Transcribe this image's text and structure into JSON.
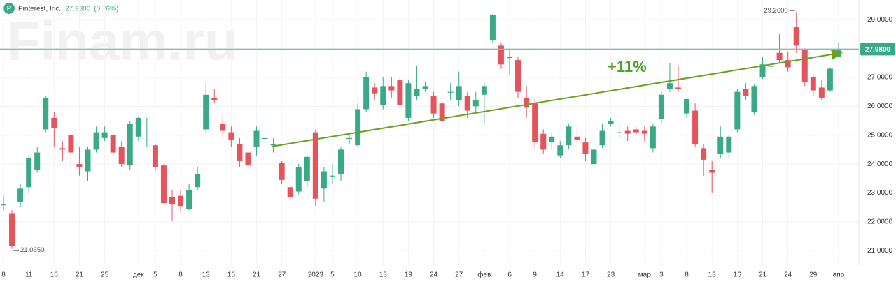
{
  "chart_data": {
    "type": "candlestick",
    "ticker_icon": "P",
    "title": "Pinterest, Inc.",
    "last_price": {
      "value": 27.98,
      "label": "27.9800"
    },
    "change": {
      "value": 0.76,
      "label": "(0.76%)"
    },
    "watermark": "Finam.ru",
    "annotation": {
      "value": 11,
      "label": "+11%"
    },
    "max_label": {
      "value": 29.26,
      "label": "29.2600"
    },
    "min_label": {
      "value": 21.065,
      "label": "21.0650"
    },
    "up_color": "#3aa987",
    "down_color": "#e5545c",
    "grid": true,
    "categories": [
      "8",
      null,
      null,
      "11",
      null,
      null,
      "16",
      null,
      null,
      "21",
      null,
      null,
      "25",
      null,
      null,
      null,
      "дек",
      null,
      "5",
      null,
      null,
      "8",
      null,
      null,
      "13",
      null,
      null,
      "16",
      null,
      null,
      "21",
      null,
      null,
      "27",
      null,
      null,
      null,
      "2023",
      null,
      "5",
      null,
      null,
      "10",
      null,
      null,
      "13",
      null,
      null,
      "19",
      null,
      null,
      "24",
      null,
      null,
      "27",
      null,
      null,
      "фев",
      null,
      null,
      "6",
      null,
      null,
      "9",
      null,
      null,
      "14",
      null,
      null,
      "17",
      null,
      null,
      "23",
      null,
      null,
      null,
      "мар",
      null,
      "3",
      null,
      null,
      "8",
      null,
      null,
      "13",
      null,
      null,
      "16",
      null,
      null,
      "21",
      null,
      null,
      "24",
      null,
      null,
      "29",
      null,
      null,
      "апр"
    ],
    "open": [
      22.6,
      22.3,
      22.7,
      23.2,
      23.8,
      25.2,
      25.6,
      24.55,
      25.0,
      24.0,
      23.75,
      24.5,
      24.9,
      25.0,
      24.6,
      23.95,
      24.95,
      24.85,
      24.65,
      23.95,
      22.85,
      22.9,
      22.45,
      23.2,
      25.2,
      26.3,
      25.4,
      25.1,
      24.7,
      24.4,
      24.6,
      24.9,
      24.65,
      24.05,
      23.2,
      23.05,
      23.4,
      25.1,
      23.15,
      23.6,
      23.65,
      24.9,
      24.65,
      25.9,
      26.65,
      26.05,
      26.7,
      26.9,
      25.6,
      26.35,
      26.6,
      26.35,
      26.1,
      26.5,
      26.2,
      26.35,
      26.0,
      26.4,
      28.3,
      28.1,
      27.7,
      27.6,
      26.3,
      26.1,
      25.05,
      24.75,
      24.3,
      24.65,
      24.95,
      24.75,
      24.0,
      24.65,
      25.4,
      25.1,
      25.15,
      25.2,
      25.15,
      24.55,
      25.55,
      26.6,
      26.65,
      25.75,
      25.85,
      24.55,
      23.8,
      24.35,
      24.4,
      25.2,
      26.6,
      25.8,
      27.0,
      27.4,
      27.85,
      27.6,
      28.75,
      27.95,
      27.0,
      26.65,
      26.55,
      27.7
    ],
    "high": [
      22.9,
      22.4,
      23.3,
      24.3,
      24.6,
      26.35,
      25.8,
      24.8,
      25.1,
      24.6,
      24.6,
      25.3,
      25.3,
      25.1,
      24.8,
      25.5,
      25.65,
      25.6,
      24.7,
      24.0,
      23.1,
      23.1,
      23.3,
      23.9,
      26.8,
      26.6,
      25.7,
      25.3,
      24.9,
      24.6,
      25.3,
      25.0,
      24.9,
      24.1,
      23.25,
      24.0,
      24.3,
      25.2,
      23.9,
      24.0,
      24.6,
      25.0,
      26.1,
      27.2,
      26.8,
      27.0,
      27.0,
      27.0,
      26.9,
      27.4,
      26.85,
      26.5,
      26.3,
      26.8,
      27.2,
      26.5,
      26.5,
      26.8,
      29.2,
      28.2,
      28.0,
      27.7,
      26.7,
      26.25,
      25.2,
      25.1,
      24.8,
      25.4,
      25.3,
      24.9,
      24.6,
      25.4,
      25.6,
      25.4,
      25.3,
      25.3,
      25.3,
      25.4,
      26.5,
      27.5,
      27.4,
      26.3,
      26.1,
      24.7,
      24.1,
      25.3,
      25.0,
      26.6,
      26.8,
      26.75,
      27.7,
      28.0,
      28.5,
      27.9,
      29.26,
      28.0,
      27.1,
      26.9,
      27.35,
      28.2
    ],
    "low": [
      22.4,
      21.065,
      22.5,
      23.0,
      23.7,
      25.1,
      24.6,
      24.1,
      23.9,
      23.6,
      23.4,
      24.4,
      24.8,
      24.3,
      23.9,
      23.8,
      24.8,
      24.6,
      23.75,
      22.6,
      22.05,
      22.35,
      22.4,
      23.1,
      25.1,
      26.1,
      24.9,
      24.6,
      23.9,
      23.7,
      24.3,
      24.4,
      24.4,
      23.3,
      22.75,
      22.95,
      23.2,
      22.55,
      22.7,
      23.3,
      23.4,
      24.7,
      24.6,
      25.8,
      26.2,
      25.9,
      26.3,
      25.9,
      25.5,
      26.2,
      26.5,
      25.6,
      25.2,
      26.2,
      26.0,
      25.6,
      25.8,
      25.4,
      28.2,
      27.3,
      27.1,
      26.3,
      25.6,
      24.6,
      24.35,
      24.5,
      24.2,
      24.5,
      24.7,
      24.1,
      23.9,
      24.55,
      25.3,
      24.9,
      24.8,
      25.0,
      24.8,
      24.4,
      25.4,
      26.5,
      26.5,
      25.6,
      24.6,
      23.6,
      23.0,
      24.2,
      24.2,
      25.1,
      26.2,
      25.7,
      26.95,
      27.2,
      27.5,
      27.2,
      27.85,
      26.7,
      26.35,
      26.2,
      26.5,
      27.7
    ],
    "close": [
      22.6,
      21.17,
      23.15,
      24.2,
      24.4,
      26.3,
      25.25,
      24.5,
      24.4,
      23.9,
      24.5,
      25.1,
      25.1,
      24.4,
      24.0,
      25.4,
      25.6,
      24.85,
      23.9,
      22.65,
      22.6,
      22.55,
      23.1,
      23.65,
      26.4,
      26.2,
      25.15,
      24.85,
      24.1,
      23.95,
      25.15,
      24.9,
      24.7,
      23.45,
      22.85,
      23.9,
      24.25,
      22.8,
      23.75,
      23.6,
      24.5,
      24.9,
      25.9,
      27.0,
      26.45,
      26.7,
      26.55,
      26.05,
      26.8,
      26.6,
      26.7,
      25.75,
      25.5,
      26.5,
      26.7,
      25.85,
      26.2,
      26.7,
      29.15,
      27.45,
      27.7,
      26.5,
      25.95,
      24.75,
      24.5,
      24.95,
      24.65,
      25.3,
      24.85,
      24.35,
      24.5,
      25.15,
      25.5,
      25.1,
      25.05,
      25.1,
      25.05,
      25.3,
      26.4,
      26.8,
      26.6,
      26.25,
      24.7,
      24.15,
      23.7,
      24.95,
      24.95,
      26.5,
      26.35,
      26.7,
      27.45,
      27.4,
      27.6,
      27.35,
      28.1,
      26.85,
      26.55,
      26.3,
      27.3,
      27.98
    ],
    "ylim": [
      20.5,
      29.68
    ],
    "yticks": [
      {
        "value": 21,
        "label": "21.0000"
      },
      {
        "value": 22,
        "label": "22.0000"
      },
      {
        "value": 23,
        "label": "23.0000"
      },
      {
        "value": 24,
        "label": "24.0000"
      },
      {
        "value": 25,
        "label": "25.0000"
      },
      {
        "value": 26,
        "label": "26.0000"
      },
      {
        "value": 27,
        "label": "27.0000"
      },
      {
        "value": 28,
        "label": "28.0000"
      },
      {
        "value": 29,
        "label": "29.0000"
      }
    ]
  }
}
